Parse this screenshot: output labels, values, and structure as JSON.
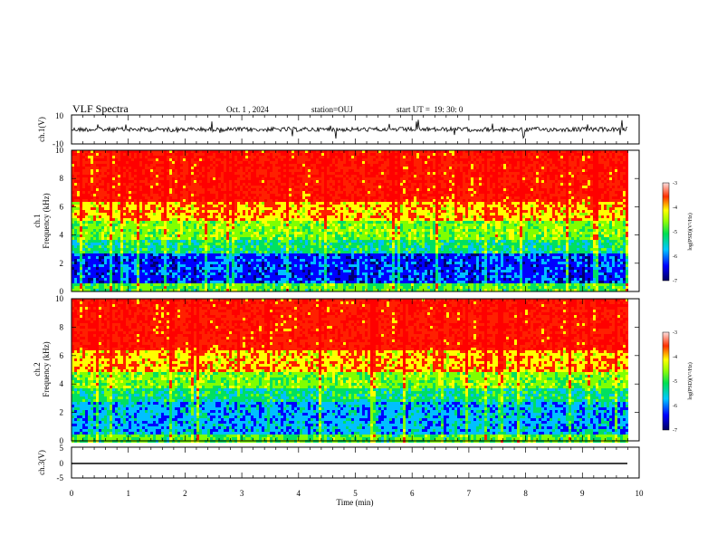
{
  "header": {
    "title": "VLF Spectra",
    "date": "Oct. 1 , 2024",
    "station": "station=OUJ",
    "start": "start UT =  19: 30: 0"
  },
  "colors": {
    "scale": [
      "#000070",
      "#0000ff",
      "#00c0ff",
      "#00e060",
      "#80ff00",
      "#ffff00",
      "#ff2000",
      "#ff0000"
    ],
    "trace": "#000000"
  },
  "chart_data": [
    {
      "type": "line",
      "panel": "ch1",
      "ylabel": "ch.1(V)",
      "ylim": [
        -10,
        10
      ],
      "yticks": [
        "10",
        "-10"
      ],
      "description_values": {
        "baseline": 0,
        "spikes_max": 10
      }
    },
    {
      "type": "heatmap",
      "panel": "ch1-spec",
      "ylabel": "ch.1\nFrequency (kHz)",
      "ylabel_lines": [
        "ch.1",
        "Frequency (kHz)"
      ],
      "ylim": [
        0,
        10
      ],
      "yticks": [
        "0",
        "2",
        "4",
        "6",
        "8",
        "10"
      ],
      "colorbar": {
        "label": "log(PSD)(V²/Hz)",
        "range": [
          -7,
          -3
        ],
        "ticks": [
          "-3",
          "-4",
          "-5",
          "-6",
          "-7"
        ]
      }
    },
    {
      "type": "heatmap",
      "panel": "ch2-spec",
      "ylabel_lines": [
        "ch.2",
        "Frequency (kHz)"
      ],
      "ylim": [
        0,
        10
      ],
      "yticks": [
        "0",
        "2",
        "4",
        "6",
        "8",
        "10"
      ],
      "colorbar": {
        "label": "log(PSD)(V²/Hz)",
        "range": [
          -7,
          -3
        ],
        "ticks": [
          "-3",
          "-4",
          "-5",
          "-6",
          "-7"
        ]
      }
    },
    {
      "type": "line",
      "panel": "ch3",
      "ylabel": "ch.3(V)",
      "ylim": [
        -5,
        5
      ],
      "yticks": [
        "5",
        "0",
        "-5"
      ],
      "x": [
        0,
        9.8
      ],
      "y": [
        0,
        0
      ]
    }
  ],
  "xaxis": {
    "label": "Time (min)",
    "range": [
      0,
      10
    ],
    "ticks": [
      "0",
      "1",
      "2",
      "3",
      "4",
      "5",
      "6",
      "7",
      "8",
      "9",
      "10"
    ]
  }
}
